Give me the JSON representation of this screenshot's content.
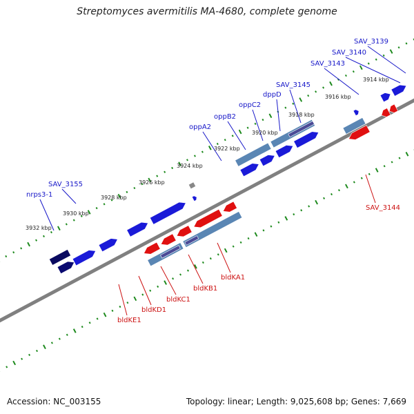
{
  "title": "Streptomyces avermitilis MA-4680, complete genome",
  "footer": {
    "accession": "Accession: NC_003155",
    "topology": "Topology: linear; Length: 9,025,608 bp; Genes: 7,669"
  },
  "colors": {
    "forward_gene": "#1a1ad8",
    "reverse_gene": "#e01010",
    "cds_track": "#5a86b4",
    "cds_track_dark": "#4a4a96",
    "backbone": "#808080",
    "tick": "#1d8a1d",
    "label_blue": "#1616c8",
    "label_red": "#cc1111"
  },
  "scale_labels": [
    "3914 kbp",
    "3916 kbp",
    "3918 kbp",
    "3920 kbp",
    "3922 kbp",
    "3924 kbp",
    "3926 kbp",
    "3928 kbp",
    "3930 kbp",
    "3932 kbp"
  ],
  "forward_labels": [
    "SAV_3139",
    "SAV_3140",
    "SAV_3143",
    "SAV_3145",
    "dppD",
    "oppC2",
    "oppB2",
    "oppA2",
    "SAV_3155",
    "nrps3-1"
  ],
  "reverse_labels": [
    "SAV_3144",
    "bldKA1",
    "bldKB1",
    "bldKC1",
    "bldKD1",
    "bldKE1"
  ]
}
